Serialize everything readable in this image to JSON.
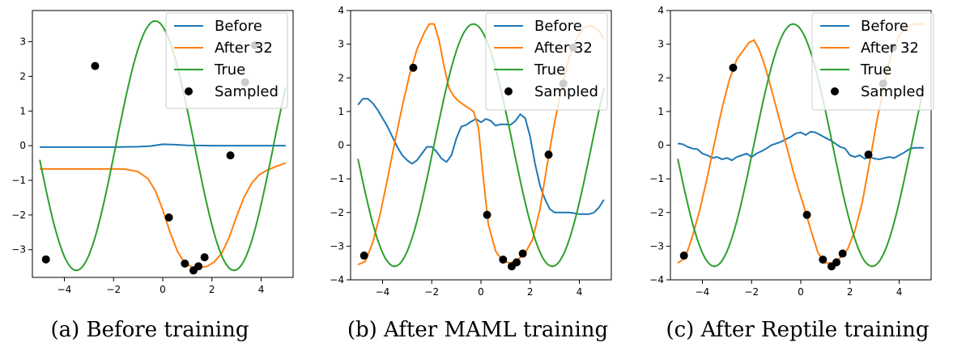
{
  "colors": {
    "before": "#1f77b4",
    "after": "#ff7f0e",
    "true": "#2ca02c",
    "sampled": "#000000"
  },
  "chart_data": [
    {
      "type": "line",
      "caption": "(a) Before training",
      "xlim": [
        -5.3,
        5.3
      ],
      "ylim": [
        -3.8,
        3.9
      ],
      "xticks": [
        -4,
        -2,
        0,
        2,
        4
      ],
      "yticks": [
        -3,
        -2,
        -1,
        0,
        1,
        2,
        3
      ],
      "legend": [
        "Before",
        "After 32",
        "True",
        "Sampled"
      ],
      "series": [
        {
          "name": "Before",
          "color": "#1f77b4",
          "x": [
            -5,
            -4,
            -3,
            -2,
            -1,
            -0.5,
            0,
            0.5,
            1,
            2,
            3,
            4,
            5
          ],
          "y": [
            -0.04,
            -0.04,
            -0.04,
            -0.04,
            -0.03,
            -0.01,
            0.04,
            0.03,
            0.01,
            0.0,
            0.0,
            0.0,
            0.0
          ]
        },
        {
          "name": "After 32",
          "color": "#ff7f0e",
          "x": [
            -5,
            -4,
            -3,
            -2,
            -1.5,
            -1,
            -0.6,
            -0.3,
            0,
            0.3,
            0.6,
            0.9,
            1.2,
            1.5,
            1.8,
            2.1,
            2.4,
            2.7,
            3.0,
            3.3,
            3.6,
            3.9,
            4.2,
            4.6,
            5
          ],
          "y": [
            -0.67,
            -0.67,
            -0.67,
            -0.67,
            -0.68,
            -0.75,
            -0.95,
            -1.3,
            -1.85,
            -2.5,
            -3.05,
            -3.4,
            -3.5,
            -3.52,
            -3.48,
            -3.35,
            -3.1,
            -2.65,
            -2.05,
            -1.5,
            -1.1,
            -0.85,
            -0.72,
            -0.6,
            -0.5
          ]
        },
        {
          "name": "True",
          "color": "#2ca02c",
          "curve": "true"
        }
      ],
      "sampled": {
        "x": [
          -4.75,
          -2.75,
          0.25,
          0.9,
          1.25,
          1.45,
          1.7,
          2.75,
          3.35,
          3.75
        ],
        "y": [
          -3.28,
          2.3,
          -2.07,
          -3.4,
          -3.6,
          -3.48,
          -3.22,
          -0.28,
          1.83,
          2.9
        ]
      }
    },
    {
      "type": "line",
      "caption": "(b) After MAML training",
      "xlim": [
        -5.3,
        5.3
      ],
      "ylim": [
        -4,
        4
      ],
      "xticks": [
        -4,
        -2,
        0,
        2,
        4
      ],
      "yticks": [
        -4,
        -3,
        -2,
        -1,
        0,
        1,
        2,
        3,
        4
      ],
      "legend": [
        "Before",
        "After 32",
        "True",
        "Sampled"
      ],
      "series": [
        {
          "name": "Before",
          "color": "#1f77b4",
          "x": [
            -5,
            -4.8,
            -4.6,
            -4.4,
            -4.2,
            -4.0,
            -3.8,
            -3.6,
            -3.4,
            -3.2,
            -3.0,
            -2.8,
            -2.6,
            -2.4,
            -2.2,
            -2.0,
            -1.8,
            -1.6,
            -1.4,
            -1.2,
            -1.0,
            -0.8,
            -0.6,
            -0.4,
            -0.2,
            0,
            0.2,
            0.4,
            0.6,
            0.8,
            1.0,
            1.2,
            1.4,
            1.6,
            1.8,
            2.0,
            2.2,
            2.4,
            2.6,
            2.8,
            3.0,
            3.2,
            3.4,
            3.6,
            3.8,
            4.0,
            4.2,
            4.4,
            4.6,
            4.8,
            5.0
          ],
          "y": [
            1.2,
            1.38,
            1.38,
            1.25,
            1.05,
            0.8,
            0.55,
            0.25,
            -0.05,
            -0.3,
            -0.45,
            -0.55,
            -0.45,
            -0.25,
            -0.05,
            -0.05,
            -0.2,
            -0.4,
            -0.5,
            -0.3,
            0.2,
            0.55,
            0.6,
            0.7,
            0.78,
            0.68,
            0.78,
            0.72,
            0.58,
            0.62,
            0.62,
            0.6,
            0.72,
            0.92,
            0.8,
            0.25,
            -0.55,
            -1.2,
            -1.6,
            -1.9,
            -2.0,
            -2.0,
            -2.0,
            -2.0,
            -2.02,
            -2.05,
            -2.05,
            -2.05,
            -2.0,
            -1.85,
            -1.62
          ]
        },
        {
          "name": "After 32",
          "color": "#ff7f0e",
          "x": [
            -5,
            -4.7,
            -4.4,
            -4.1,
            -3.8,
            -3.5,
            -3.2,
            -2.9,
            -2.6,
            -2.3,
            -2.1,
            -1.9,
            -1.7,
            -1.5,
            -1.3,
            -1.1,
            -0.9,
            -0.7,
            -0.5,
            -0.3,
            -0.1,
            0.1,
            0.3,
            0.6,
            0.9,
            1.2,
            1.5,
            1.8,
            2.1,
            2.4,
            2.7,
            3.0,
            3.3,
            3.6,
            3.9,
            4.2,
            4.5,
            4.8,
            5
          ],
          "y": [
            -3.55,
            -3.45,
            -2.9,
            -2.05,
            -1.0,
            0.1,
            1.15,
            2.1,
            2.85,
            3.35,
            3.6,
            3.6,
            3.1,
            2.35,
            1.7,
            1.45,
            1.3,
            1.2,
            1.1,
            1.0,
            0.5,
            -1.0,
            -2.35,
            -3.15,
            -3.45,
            -3.5,
            -3.4,
            -3.2,
            -2.8,
            -1.9,
            -0.55,
            0.7,
            1.75,
            2.65,
            3.2,
            3.5,
            3.55,
            3.4,
            3.15
          ]
        },
        {
          "name": "True",
          "color": "#2ca02c",
          "curve": "true"
        }
      ],
      "sampled": {
        "x": [
          -4.75,
          -2.75,
          0.25,
          0.9,
          1.25,
          1.45,
          1.7,
          2.75,
          3.35,
          3.75
        ],
        "y": [
          -3.28,
          2.3,
          -2.07,
          -3.4,
          -3.6,
          -3.48,
          -3.22,
          -0.28,
          1.83,
          2.9
        ]
      }
    },
    {
      "type": "line",
      "caption": "(c) After Reptile training",
      "xlim": [
        -5.3,
        5.3
      ],
      "ylim": [
        -4,
        4
      ],
      "xticks": [
        -4,
        -2,
        0,
        2,
        4
      ],
      "yticks": [
        -4,
        -3,
        -2,
        -1,
        0,
        1,
        2,
        3,
        4
      ],
      "legend": [
        "Before",
        "After 32",
        "True",
        "Sampled"
      ],
      "series": [
        {
          "name": "Before",
          "color": "#1f77b4",
          "x": [
            -5,
            -4.8,
            -4.6,
            -4.4,
            -4.2,
            -4.0,
            -3.8,
            -3.6,
            -3.4,
            -3.2,
            -3.0,
            -2.8,
            -2.6,
            -2.4,
            -2.2,
            -2.0,
            -1.8,
            -1.6,
            -1.4,
            -1.2,
            -1.0,
            -0.8,
            -0.6,
            -0.4,
            -0.2,
            0,
            0.2,
            0.4,
            0.6,
            0.8,
            1.0,
            1.2,
            1.4,
            1.6,
            1.8,
            2.0,
            2.2,
            2.4,
            2.6,
            2.8,
            3.0,
            3.2,
            3.4,
            3.6,
            3.8,
            4.0,
            4.2,
            4.4,
            4.6,
            4.8,
            5.0
          ],
          "y": [
            0.05,
            0.03,
            -0.05,
            -0.1,
            -0.12,
            -0.25,
            -0.3,
            -0.38,
            -0.35,
            -0.42,
            -0.38,
            -0.45,
            -0.35,
            -0.3,
            -0.25,
            -0.35,
            -0.25,
            -0.18,
            -0.1,
            0.0,
            0.05,
            0.1,
            0.18,
            0.25,
            0.35,
            0.38,
            0.3,
            0.4,
            0.38,
            0.3,
            0.22,
            0.15,
            0.05,
            -0.05,
            -0.1,
            -0.3,
            -0.35,
            -0.3,
            -0.4,
            -0.35,
            -0.4,
            -0.42,
            -0.38,
            -0.35,
            -0.38,
            -0.3,
            -0.22,
            -0.12,
            -0.08,
            -0.08,
            -0.08
          ]
        },
        {
          "name": "After 32",
          "color": "#ff7f0e",
          "x": [
            -5,
            -4.7,
            -4.4,
            -4.1,
            -3.8,
            -3.5,
            -3.2,
            -2.9,
            -2.6,
            -2.3,
            -2.1,
            -1.9,
            -1.7,
            -1.5,
            -1.3,
            -1.1,
            -0.9,
            -0.7,
            -0.5,
            -0.3,
            -0.1,
            0.1,
            0.4,
            0.7,
            1.0,
            1.3,
            1.6,
            1.9,
            2.2,
            2.5,
            2.8,
            3.1,
            3.4,
            3.7,
            4.0,
            4.3,
            4.6,
            5
          ],
          "y": [
            -3.5,
            -3.35,
            -2.7,
            -1.9,
            -0.95,
            0.1,
            1.1,
            1.95,
            2.55,
            2.85,
            3.05,
            3.12,
            2.85,
            2.45,
            1.95,
            1.4,
            0.85,
            0.3,
            -0.25,
            -0.8,
            -1.3,
            -1.75,
            -2.5,
            -3.2,
            -3.5,
            -3.5,
            -3.35,
            -3.1,
            -2.55,
            -1.7,
            -0.5,
            0.75,
            1.85,
            2.75,
            3.25,
            3.5,
            3.6,
            3.6
          ]
        },
        {
          "name": "True",
          "color": "#2ca02c",
          "curve": "true"
        }
      ],
      "sampled": {
        "x": [
          -4.75,
          -2.75,
          0.25,
          0.9,
          1.25,
          1.45,
          1.7,
          2.75,
          3.35,
          3.75
        ],
        "y": [
          -3.28,
          2.3,
          -2.07,
          -3.4,
          -3.6,
          -3.48,
          -3.22,
          -0.28,
          1.83,
          2.9
        ]
      }
    }
  ]
}
